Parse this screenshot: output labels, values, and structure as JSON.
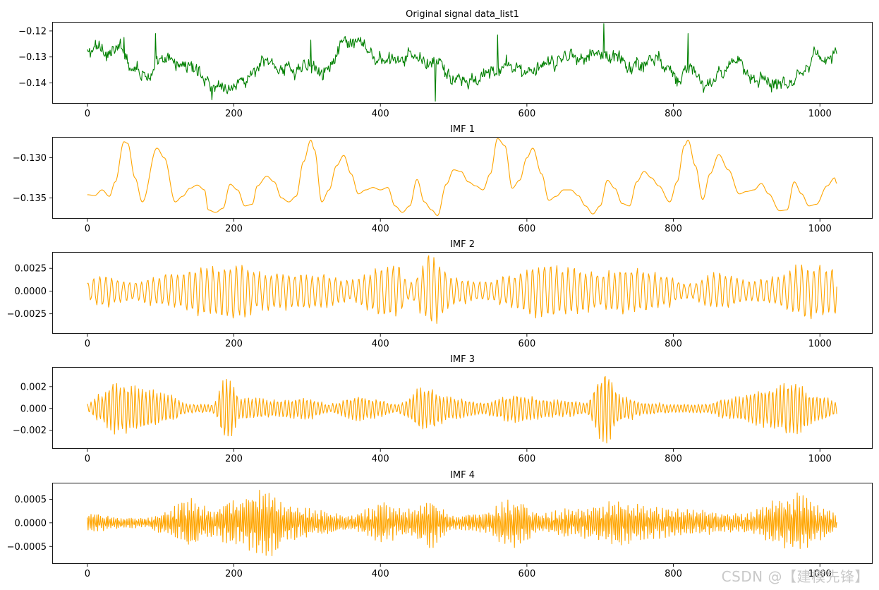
{
  "chart_data": [
    {
      "type": "line",
      "title": "Original signal data_list1",
      "color": "#008000",
      "xlim": [
        -48,
        1072
      ],
      "ylim": [
        -0.148,
        -0.1165
      ],
      "xticks": [
        0,
        200,
        400,
        600,
        800,
        1000
      ],
      "yticks": [
        -0.12,
        -0.13,
        -0.14
      ],
      "ytick_labels": [
        "−0.12",
        "−0.13",
        "−0.14"
      ],
      "n_points": 1024,
      "series": [
        {
          "name": "data_list1",
          "envelope": {
            "kind": "noisy",
            "mean": -0.1335,
            "swing": 0.0075,
            "min": -0.1475,
            "max": -0.1172
          },
          "peaks": [
            [
              50,
              -0.1225
            ],
            [
              93,
              -0.121
            ],
            [
              305,
              -0.1235
            ],
            [
              475,
              -0.147
            ],
            [
              560,
              -0.1215
            ],
            [
              705,
              -0.1172
            ],
            [
              820,
              -0.121
            ],
            [
              170,
              -0.1465
            ]
          ]
        }
      ]
    },
    {
      "type": "line",
      "title": "IMF 1",
      "color": "#ffa500",
      "xlim": [
        -48,
        1072
      ],
      "ylim": [
        -0.1376,
        -0.1274
      ],
      "xticks": [
        0,
        200,
        400,
        600,
        800,
        1000
      ],
      "yticks": [
        -0.13,
        -0.135
      ],
      "ytick_labels": [
        "−0.130",
        "−0.135"
      ],
      "n_points": 1024,
      "series": [
        {
          "name": "IMF 1",
          "points": [
            [
              0,
              -0.1346
            ],
            [
              10,
              -0.1347
            ],
            [
              20,
              -0.134
            ],
            [
              30,
              -0.1348
            ],
            [
              38,
              -0.133
            ],
            [
              50,
              -0.128
            ],
            [
              55,
              -0.1282
            ],
            [
              65,
              -0.1325
            ],
            [
              75,
              -0.1355
            ],
            [
              95,
              -0.1288
            ],
            [
              105,
              -0.13
            ],
            [
              120,
              -0.1355
            ],
            [
              130,
              -0.1348
            ],
            [
              140,
              -0.1338
            ],
            [
              150,
              -0.1334
            ],
            [
              160,
              -0.134
            ],
            [
              165,
              -0.1365
            ],
            [
              175,
              -0.1368
            ],
            [
              185,
              -0.1363
            ],
            [
              195,
              -0.1333
            ],
            [
              205,
              -0.134
            ],
            [
              215,
              -0.136
            ],
            [
              225,
              -0.1358
            ],
            [
              232,
              -0.1335
            ],
            [
              245,
              -0.1323
            ],
            [
              255,
              -0.133
            ],
            [
              265,
              -0.135
            ],
            [
              275,
              -0.1355
            ],
            [
              285,
              -0.1348
            ],
            [
              295,
              -0.1305
            ],
            [
              305,
              -0.1278
            ],
            [
              310,
              -0.129
            ],
            [
              320,
              -0.1355
            ],
            [
              330,
              -0.134
            ],
            [
              340,
              -0.131
            ],
            [
              350,
              -0.1297
            ],
            [
              360,
              -0.132
            ],
            [
              370,
              -0.1345
            ],
            [
              380,
              -0.134
            ],
            [
              390,
              -0.1337
            ],
            [
              400,
              -0.134
            ],
            [
              410,
              -0.1337
            ],
            [
              420,
              -0.136
            ],
            [
              430,
              -0.1368
            ],
            [
              440,
              -0.136
            ],
            [
              450,
              -0.1327
            ],
            [
              460,
              -0.1355
            ],
            [
              470,
              -0.1365
            ],
            [
              478,
              -0.1372
            ],
            [
              490,
              -0.1333
            ],
            [
              500,
              -0.1315
            ],
            [
              510,
              -0.1317
            ],
            [
              520,
              -0.133
            ],
            [
              530,
              -0.1335
            ],
            [
              540,
              -0.134
            ],
            [
              550,
              -0.132
            ],
            [
              560,
              -0.1276
            ],
            [
              570,
              -0.1285
            ],
            [
              580,
              -0.1338
            ],
            [
              590,
              -0.1328
            ],
            [
              600,
              -0.13
            ],
            [
              608,
              -0.1288
            ],
            [
              620,
              -0.132
            ],
            [
              630,
              -0.1353
            ],
            [
              640,
              -0.1348
            ],
            [
              650,
              -0.134
            ],
            [
              660,
              -0.134
            ],
            [
              670,
              -0.1347
            ],
            [
              680,
              -0.136
            ],
            [
              690,
              -0.137
            ],
            [
              700,
              -0.136
            ],
            [
              710,
              -0.1328
            ],
            [
              720,
              -0.1338
            ],
            [
              730,
              -0.1357
            ],
            [
              740,
              -0.136
            ],
            [
              750,
              -0.133
            ],
            [
              760,
              -0.1317
            ],
            [
              770,
              -0.1325
            ],
            [
              780,
              -0.1335
            ],
            [
              795,
              -0.1355
            ],
            [
              805,
              -0.133
            ],
            [
              815,
              -0.1285
            ],
            [
              820,
              -0.1278
            ],
            [
              830,
              -0.131
            ],
            [
              840,
              -0.1352
            ],
            [
              850,
              -0.132
            ],
            [
              862,
              -0.1296
            ],
            [
              875,
              -0.1315
            ],
            [
              890,
              -0.1345
            ],
            [
              900,
              -0.1342
            ],
            [
              910,
              -0.134
            ],
            [
              920,
              -0.1332
            ],
            [
              930,
              -0.1345
            ],
            [
              945,
              -0.1366
            ],
            [
              955,
              -0.1365
            ],
            [
              965,
              -0.133
            ],
            [
              975,
              -0.1345
            ],
            [
              985,
              -0.136
            ],
            [
              995,
              -0.1358
            ],
            [
              1010,
              -0.1335
            ],
            [
              1020,
              -0.1325
            ],
            [
              1023,
              -0.1332
            ]
          ]
        }
      ]
    },
    {
      "type": "line",
      "title": "IMF 2",
      "color": "#ffa500",
      "xlim": [
        -48,
        1072
      ],
      "ylim": [
        -0.0047,
        0.0043
      ],
      "xticks": [
        0,
        200,
        400,
        600,
        800,
        1000
      ],
      "yticks": [
        0.0025,
        0.0,
        -0.0025
      ],
      "ytick_labels": [
        "0.0025",
        "0.0000",
        "−0.0025"
      ],
      "n_points": 1024,
      "series": [
        {
          "name": "IMF 2",
          "envelope": {
            "kind": "oscillation",
            "period_samples": 8,
            "min": -0.0045,
            "max": 0.004
          },
          "amplitude_profile": [
            [
              0,
              0.001
            ],
            [
              20,
              0.0018
            ],
            [
              60,
              0.001
            ],
            [
              90,
              0.0015
            ],
            [
              120,
              0.002
            ],
            [
              160,
              0.0028
            ],
            [
              200,
              0.003
            ],
            [
              240,
              0.002
            ],
            [
              280,
              0.002
            ],
            [
              320,
              0.0018
            ],
            [
              360,
              0.0012
            ],
            [
              400,
              0.0025
            ],
            [
              420,
              0.003
            ],
            [
              440,
              0.001
            ],
            [
              470,
              0.004
            ],
            [
              500,
              0.0015
            ],
            [
              540,
              0.001
            ],
            [
              580,
              0.0018
            ],
            [
              620,
              0.003
            ],
            [
              660,
              0.0025
            ],
            [
              700,
              0.002
            ],
            [
              740,
              0.0025
            ],
            [
              780,
              0.002
            ],
            [
              820,
              0.0008
            ],
            [
              860,
              0.002
            ],
            [
              900,
              0.0012
            ],
            [
              940,
              0.0015
            ],
            [
              980,
              0.003
            ],
            [
              1023,
              0.0024
            ]
          ]
        }
      ]
    },
    {
      "type": "line",
      "title": "IMF 3",
      "color": "#ffa500",
      "xlim": [
        -48,
        1072
      ],
      "ylim": [
        -0.0037,
        0.0038
      ],
      "xticks": [
        0,
        200,
        400,
        600,
        800,
        1000
      ],
      "yticks": [
        0.002,
        0.0,
        -0.002
      ],
      "ytick_labels": [
        "0.002",
        "0.000",
        "−0.002"
      ],
      "n_points": 1024,
      "series": [
        {
          "name": "IMF 3",
          "envelope": {
            "kind": "oscillation",
            "period_samples": 5,
            "min": -0.0033,
            "max": 0.0036
          },
          "amplitude_profile": [
            [
              0,
              0.0004
            ],
            [
              15,
              0.0012
            ],
            [
              40,
              0.0024
            ],
            [
              80,
              0.002
            ],
            [
              110,
              0.0012
            ],
            [
              140,
              0.0004
            ],
            [
              170,
              0.0004
            ],
            [
              190,
              0.003
            ],
            [
              210,
              0.001
            ],
            [
              260,
              0.0008
            ],
            [
              300,
              0.001
            ],
            [
              330,
              0.0004
            ],
            [
              370,
              0.0012
            ],
            [
              400,
              0.0008
            ],
            [
              420,
              0.0004
            ],
            [
              460,
              0.002
            ],
            [
              500,
              0.001
            ],
            [
              540,
              0.0006
            ],
            [
              580,
              0.0012
            ],
            [
              640,
              0.0008
            ],
            [
              680,
              0.0006
            ],
            [
              705,
              0.0035
            ],
            [
              730,
              0.0012
            ],
            [
              760,
              0.0006
            ],
            [
              800,
              0.0004
            ],
            [
              840,
              0.0004
            ],
            [
              880,
              0.001
            ],
            [
              930,
              0.0018
            ],
            [
              960,
              0.0024
            ],
            [
              1000,
              0.0012
            ],
            [
              1023,
              0.0006
            ]
          ]
        }
      ]
    },
    {
      "type": "line",
      "title": "IMF 4",
      "color": "#ffa500",
      "xlim": [
        -48,
        1072
      ],
      "ylim": [
        -0.00087,
        0.00085
      ],
      "xticks": [
        0,
        200,
        400,
        600,
        800,
        1000
      ],
      "yticks": [
        0.0005,
        0.0,
        -0.0005
      ],
      "ytick_labels": [
        "0.0005",
        "0.0000",
        "−0.0005"
      ],
      "n_points": 1024,
      "series": [
        {
          "name": "IMF 4",
          "envelope": {
            "kind": "oscillation",
            "period_samples": 2.6,
            "min": -0.0008,
            "max": 0.0008
          },
          "amplitude_profile": [
            [
              0,
              0.0002
            ],
            [
              40,
              0.00012
            ],
            [
              80,
              0.0001
            ],
            [
              100,
              0.0002
            ],
            [
              140,
              0.0005
            ],
            [
              170,
              0.0003
            ],
            [
              200,
              0.00045
            ],
            [
              245,
              0.0007
            ],
            [
              280,
              0.00035
            ],
            [
              320,
              0.00025
            ],
            [
              360,
              0.00015
            ],
            [
              400,
              0.0004
            ],
            [
              440,
              0.0003
            ],
            [
              470,
              0.0005
            ],
            [
              500,
              0.00015
            ],
            [
              540,
              0.0002
            ],
            [
              580,
              0.0005
            ],
            [
              620,
              0.0002
            ],
            [
              660,
              0.0003
            ],
            [
              700,
              0.00035
            ],
            [
              720,
              0.0005
            ],
            [
              760,
              0.00035
            ],
            [
              800,
              0.0003
            ],
            [
              840,
              0.00025
            ],
            [
              870,
              0.0002
            ],
            [
              900,
              0.0002
            ],
            [
              940,
              0.00045
            ],
            [
              970,
              0.0006
            ],
            [
              1000,
              0.00035
            ],
            [
              1023,
              0.0002
            ]
          ]
        }
      ]
    }
  ],
  "watermark": "CSDN @【建模先锋】"
}
